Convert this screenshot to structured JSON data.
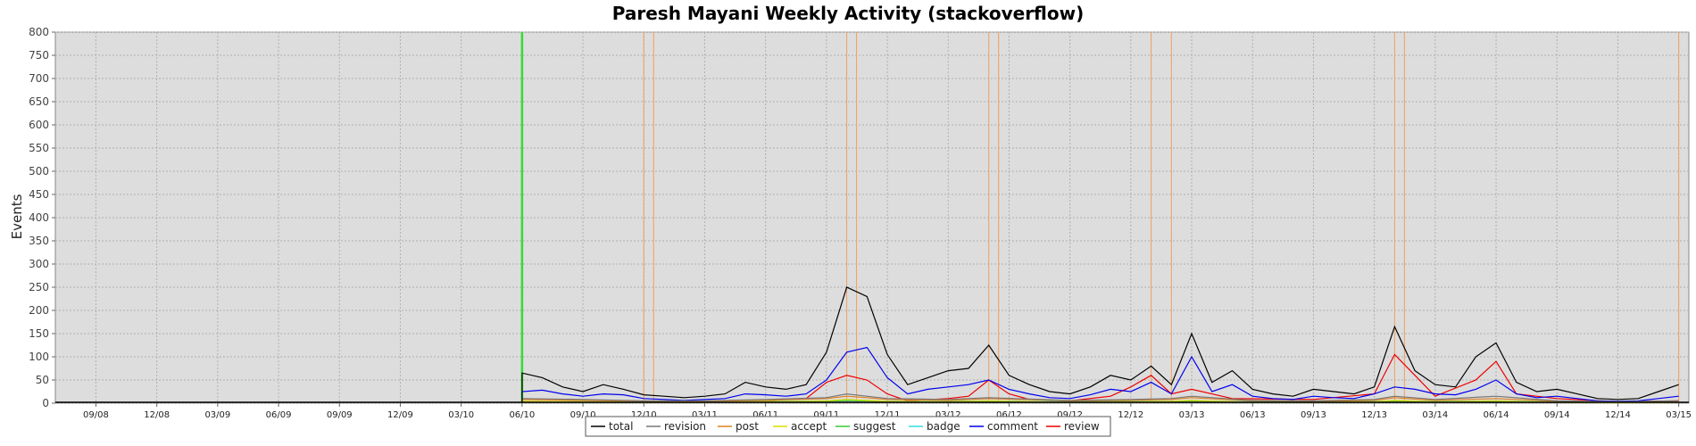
{
  "chart_data": {
    "type": "line",
    "title": "Paresh Mayani Weekly Activity (stackoverflow)",
    "xlabel": "",
    "ylabel": "Events",
    "ylim": [
      0,
      800
    ],
    "yticks": [
      0,
      50,
      100,
      150,
      200,
      250,
      300,
      350,
      400,
      450,
      500,
      550,
      600,
      650,
      700,
      750,
      800
    ],
    "x_start": "2008-07",
    "x_end": "2015-03",
    "xtick_labels": [
      "09/08",
      "12/08",
      "03/09",
      "06/09",
      "09/09",
      "12/09",
      "03/10",
      "06/10",
      "09/10",
      "12/10",
      "03/11",
      "06/11",
      "09/11",
      "12/11",
      "03/12",
      "06/12",
      "09/12",
      "12/12",
      "03/13",
      "06/13",
      "09/13",
      "12/13",
      "03/14",
      "06/14",
      "09/14",
      "12/14",
      "03/15"
    ],
    "xtick_dates": [
      "2008-09",
      "2008-12",
      "2009-03",
      "2009-06",
      "2009-09",
      "2009-12",
      "2010-03",
      "2010-06",
      "2010-09",
      "2010-12",
      "2011-03",
      "2011-06",
      "2011-09",
      "2011-12",
      "2012-03",
      "2012-06",
      "2012-09",
      "2012-12",
      "2013-03",
      "2013-06",
      "2013-09",
      "2013-12",
      "2014-03",
      "2014-06",
      "2014-09",
      "2014-12",
      "2015-03"
    ],
    "grid": true,
    "legend_position": "bottom",
    "markers": [
      {
        "date": "2010-06",
        "color": "#33dd33"
      },
      {
        "date": "2010-12",
        "color": "#f0a060"
      },
      {
        "date": "2010-12",
        "color": "#f0a060"
      },
      {
        "date": "2011-10",
        "color": "#f0a060"
      },
      {
        "date": "2011-10",
        "color": "#f0a060"
      },
      {
        "date": "2012-05",
        "color": "#f0a060"
      },
      {
        "date": "2012-05",
        "color": "#f0a060"
      },
      {
        "date": "2013-01",
        "color": "#f0a060"
      },
      {
        "date": "2013-02",
        "color": "#f0a060"
      },
      {
        "date": "2014-01",
        "color": "#f0a060"
      },
      {
        "date": "2014-01",
        "color": "#f0a060"
      },
      {
        "date": "2015-03",
        "color": "#f0a060"
      }
    ],
    "series": [
      {
        "name": "total",
        "color": "#000000",
        "dates": [
          "2010-06",
          "2010-07",
          "2010-08",
          "2010-09",
          "2010-10",
          "2010-11",
          "2010-12",
          "2011-01",
          "2011-02",
          "2011-03",
          "2011-04",
          "2011-05",
          "2011-06",
          "2011-07",
          "2011-08",
          "2011-09",
          "2011-10",
          "2011-11",
          "2011-12",
          "2012-01",
          "2012-02",
          "2012-03",
          "2012-04",
          "2012-05",
          "2012-06",
          "2012-07",
          "2012-08",
          "2012-09",
          "2012-10",
          "2012-11",
          "2012-12",
          "2013-01",
          "2013-02",
          "2013-03",
          "2013-04",
          "2013-05",
          "2013-06",
          "2013-07",
          "2013-08",
          "2013-09",
          "2013-10",
          "2013-11",
          "2013-12",
          "2014-01",
          "2014-02",
          "2014-03",
          "2014-04",
          "2014-05",
          "2014-06",
          "2014-07",
          "2014-08",
          "2014-09",
          "2014-10",
          "2014-11",
          "2014-12",
          "2015-01",
          "2015-02",
          "2015-03"
        ],
        "values": [
          65,
          55,
          35,
          25,
          40,
          30,
          18,
          15,
          12,
          15,
          20,
          45,
          35,
          30,
          40,
          110,
          250,
          230,
          105,
          40,
          55,
          70,
          75,
          125,
          60,
          40,
          25,
          20,
          35,
          60,
          50,
          80,
          40,
          150,
          45,
          70,
          30,
          20,
          15,
          30,
          25,
          20,
          35,
          165,
          70,
          40,
          35,
          100,
          130,
          45,
          25,
          30,
          20,
          10,
          8,
          10,
          25,
          40
        ]
      },
      {
        "name": "revision",
        "color": "#777777",
        "dates": [
          "2010-06",
          "2010-09",
          "2010-12",
          "2011-03",
          "2011-06",
          "2011-09",
          "2011-10",
          "2011-11",
          "2011-12",
          "2012-03",
          "2012-05",
          "2012-09",
          "2012-12",
          "2013-02",
          "2013-03",
          "2013-06",
          "2013-09",
          "2013-12",
          "2014-01",
          "2014-03",
          "2014-06",
          "2014-09",
          "2014-12",
          "2015-03"
        ],
        "values": [
          10,
          8,
          5,
          5,
          8,
          12,
          20,
          15,
          10,
          8,
          12,
          6,
          8,
          10,
          15,
          6,
          5,
          8,
          15,
          8,
          15,
          5,
          3,
          5
        ]
      },
      {
        "name": "post",
        "color": "#e08020",
        "dates": [
          "2010-06",
          "2010-09",
          "2010-12",
          "2011-03",
          "2011-06",
          "2011-09",
          "2011-10",
          "2011-11",
          "2011-12",
          "2012-03",
          "2012-05",
          "2012-09",
          "2012-12",
          "2013-02",
          "2013-03",
          "2013-06",
          "2013-09",
          "2013-12",
          "2014-01",
          "2014-03",
          "2014-06",
          "2014-09",
          "2014-12",
          "2015-03"
        ],
        "values": [
          8,
          6,
          4,
          4,
          6,
          10,
          15,
          12,
          8,
          6,
          10,
          5,
          6,
          8,
          12,
          5,
          4,
          6,
          12,
          6,
          10,
          4,
          2,
          4
        ]
      },
      {
        "name": "accept",
        "color": "#dddd00",
        "dates": [
          "2010-06",
          "2010-09",
          "2010-12",
          "2011-03",
          "2011-06",
          "2011-09",
          "2011-10",
          "2011-11",
          "2011-12",
          "2012-03",
          "2012-05",
          "2012-09",
          "2012-12",
          "2013-02",
          "2013-03",
          "2013-06",
          "2013-09",
          "2013-12",
          "2014-01",
          "2014-03",
          "2014-06",
          "2014-09",
          "2014-12",
          "2015-03"
        ],
        "values": [
          4,
          3,
          2,
          2,
          3,
          5,
          8,
          6,
          4,
          3,
          5,
          2,
          3,
          4,
          6,
          2,
          2,
          3,
          6,
          3,
          5,
          2,
          1,
          2
        ]
      },
      {
        "name": "suggest",
        "color": "#33cc33",
        "dates": [
          "2010-06",
          "2010-09",
          "2010-12",
          "2011-03",
          "2011-06",
          "2011-09",
          "2011-10",
          "2011-11",
          "2011-12",
          "2012-03",
          "2012-05",
          "2012-09",
          "2012-12",
          "2013-02",
          "2013-03",
          "2013-06",
          "2013-09",
          "2013-12",
          "2014-01",
          "2014-03",
          "2014-06",
          "2014-09",
          "2014-12",
          "2015-03"
        ],
        "values": [
          3,
          2,
          2,
          2,
          3,
          4,
          6,
          5,
          3,
          2,
          4,
          2,
          2,
          3,
          5,
          2,
          2,
          2,
          5,
          2,
          4,
          2,
          1,
          2
        ]
      },
      {
        "name": "badge",
        "color": "#33dddd",
        "dates": [
          "2010-06",
          "2010-09",
          "2010-12",
          "2011-03",
          "2011-06",
          "2011-09",
          "2011-10",
          "2011-11",
          "2011-12",
          "2012-03",
          "2012-05",
          "2012-09",
          "2012-12",
          "2013-02",
          "2013-03",
          "2013-06",
          "2013-09",
          "2013-12",
          "2014-01",
          "2014-03",
          "2014-06",
          "2014-09",
          "2014-12",
          "2015-03"
        ],
        "values": [
          3,
          3,
          3,
          3,
          4,
          5,
          6,
          5,
          4,
          4,
          5,
          3,
          4,
          4,
          5,
          3,
          3,
          4,
          5,
          4,
          5,
          3,
          2,
          3
        ]
      },
      {
        "name": "comment",
        "color": "#0000ee",
        "dates": [
          "2010-06",
          "2010-07",
          "2010-08",
          "2010-09",
          "2010-10",
          "2010-11",
          "2010-12",
          "2011-01",
          "2011-02",
          "2011-03",
          "2011-04",
          "2011-05",
          "2011-06",
          "2011-07",
          "2011-08",
          "2011-09",
          "2011-10",
          "2011-11",
          "2011-12",
          "2012-01",
          "2012-02",
          "2012-03",
          "2012-04",
          "2012-05",
          "2012-06",
          "2012-07",
          "2012-08",
          "2012-09",
          "2012-10",
          "2012-11",
          "2012-12",
          "2013-01",
          "2013-02",
          "2013-03",
          "2013-04",
          "2013-05",
          "2013-06",
          "2013-07",
          "2013-08",
          "2013-09",
          "2013-10",
          "2013-11",
          "2013-12",
          "2014-01",
          "2014-02",
          "2014-03",
          "2014-04",
          "2014-05",
          "2014-06",
          "2014-07",
          "2014-08",
          "2014-09",
          "2014-10",
          "2014-11",
          "2014-12",
          "2015-01",
          "2015-02",
          "2015-03"
        ],
        "values": [
          25,
          28,
          20,
          15,
          20,
          18,
          10,
          8,
          6,
          8,
          10,
          20,
          18,
          15,
          20,
          50,
          110,
          120,
          55,
          20,
          30,
          35,
          40,
          50,
          30,
          20,
          12,
          10,
          18,
          30,
          25,
          45,
          20,
          100,
          25,
          40,
          15,
          10,
          8,
          15,
          12,
          10,
          20,
          35,
          30,
          20,
          18,
          30,
          50,
          20,
          12,
          15,
          10,
          5,
          4,
          5,
          10,
          15
        ]
      },
      {
        "name": "review",
        "color": "#ee0000",
        "dates": [
          "2011-06",
          "2011-07",
          "2011-08",
          "2011-09",
          "2011-10",
          "2011-11",
          "2011-12",
          "2012-01",
          "2012-03",
          "2012-04",
          "2012-05",
          "2012-06",
          "2012-07",
          "2012-09",
          "2012-11",
          "2012-12",
          "2013-01",
          "2013-02",
          "2013-03",
          "2013-05",
          "2013-09",
          "2013-12",
          "2014-01",
          "2014-02",
          "2014-03",
          "2014-05",
          "2014-06",
          "2014-07",
          "2014-09",
          "2014-12",
          "2015-03"
        ],
        "values": [
          5,
          8,
          10,
          45,
          60,
          50,
          20,
          5,
          10,
          15,
          50,
          20,
          8,
          5,
          15,
          35,
          60,
          20,
          30,
          10,
          8,
          20,
          105,
          60,
          15,
          50,
          90,
          20,
          10,
          3,
          5
        ]
      }
    ]
  }
}
